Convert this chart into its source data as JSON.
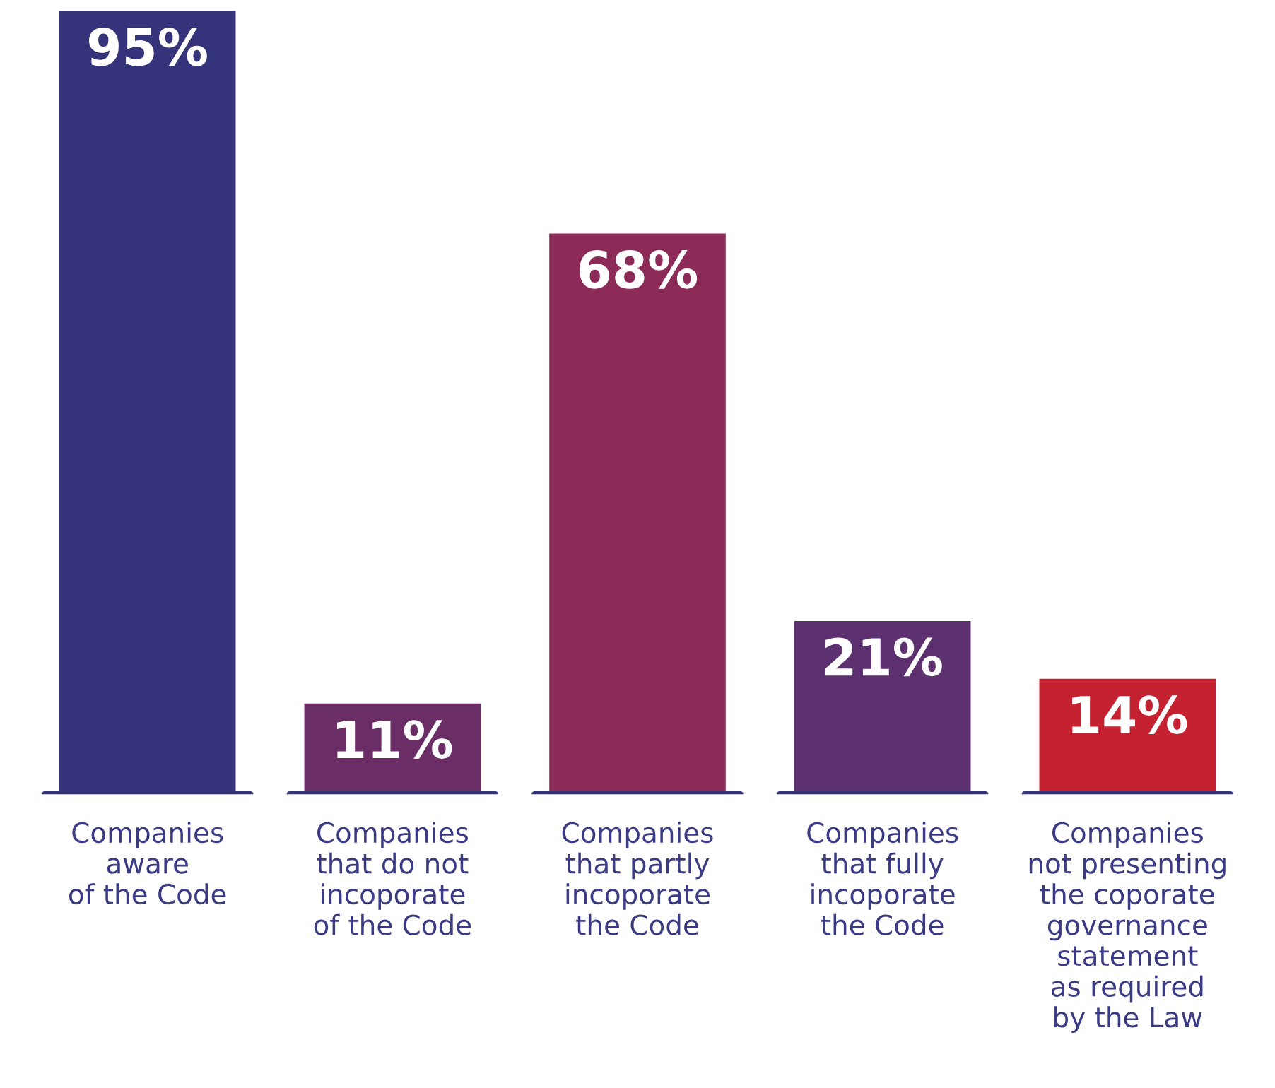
{
  "chart_data": {
    "type": "bar",
    "categories": [
      "Companies\naware\nof the Code",
      "Companies\nthat do not\nincoporate\nof the Code",
      "Companies\nthat partly\nincoporate\nthe Code",
      "Companies\nthat fully\nincoporate\nthe Code",
      "Companies\nnot presenting\nthe coporate\ngovernance\nstatement\nas required\nby the Law"
    ],
    "values": [
      95,
      11,
      68,
      21,
      14
    ],
    "colors": [
      "#35347a",
      "#6a2d66",
      "#8c2a58",
      "#5c2f6e",
      "#c42230"
    ],
    "value_labels": [
      "95%",
      "11%",
      "68%",
      "21%",
      "14%"
    ],
    "grid": false,
    "legend": false
  }
}
